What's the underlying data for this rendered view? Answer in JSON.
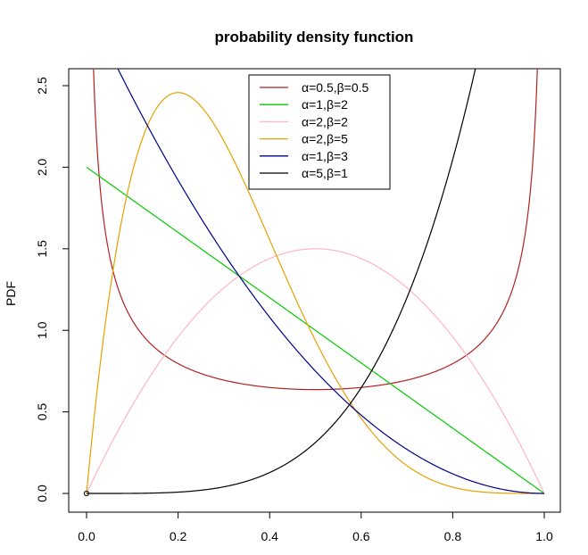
{
  "chart_data": {
    "type": "line",
    "title": "probability density function",
    "xlabel": "",
    "ylabel": "PDF",
    "xlim": [
      0.0,
      1.0
    ],
    "ylim": [
      0.0,
      2.5
    ],
    "x_ticks": [
      "0.0",
      "0.2",
      "0.4",
      "0.6",
      "0.8",
      "1.0"
    ],
    "y_ticks": [
      "0.0",
      "0.5",
      "1.0",
      "1.5",
      "2.0",
      "2.5"
    ],
    "legend_position": "top-center",
    "series": [
      {
        "name": "α=0.5,β=0.5",
        "alpha": 0.5,
        "beta": 0.5,
        "color": "#b22222",
        "x": [
          0.01,
          0.05,
          0.1,
          0.2,
          0.3,
          0.4,
          0.5,
          0.6,
          0.7,
          0.8,
          0.9,
          0.95,
          0.99
        ],
        "y": [
          3.2,
          1.46,
          1.06,
          0.8,
          0.69,
          0.65,
          0.64,
          0.65,
          0.69,
          0.8,
          1.06,
          1.46,
          3.2
        ]
      },
      {
        "name": "α=1,β=2",
        "alpha": 1,
        "beta": 2,
        "color": "#00cc00",
        "x": [
          0.0,
          0.2,
          0.4,
          0.6,
          0.8,
          1.0
        ],
        "y": [
          2.0,
          1.6,
          1.2,
          0.8,
          0.4,
          0.0
        ]
      },
      {
        "name": "α=2,β=2",
        "alpha": 2,
        "beta": 2,
        "color": "#ffb6c1",
        "x": [
          0.0,
          0.1,
          0.2,
          0.3,
          0.4,
          0.5,
          0.6,
          0.7,
          0.8,
          0.9,
          1.0
        ],
        "y": [
          0.0,
          0.54,
          0.96,
          1.26,
          1.44,
          1.5,
          1.44,
          1.26,
          0.96,
          0.54,
          0.0
        ]
      },
      {
        "name": "α=2,β=5",
        "alpha": 2,
        "beta": 5,
        "color": "#e6a100",
        "x": [
          0.0,
          0.1,
          0.2,
          0.3,
          0.4,
          0.5,
          0.6,
          0.7,
          0.8,
          0.9,
          1.0
        ],
        "y": [
          0.0,
          1.97,
          2.46,
          2.16,
          1.56,
          0.94,
          0.46,
          0.17,
          0.04,
          0.0,
          0.0
        ]
      },
      {
        "name": "α=1,β=3",
        "alpha": 1,
        "beta": 3,
        "color": "#00008b",
        "x": [
          0.0,
          0.1,
          0.2,
          0.3,
          0.4,
          0.5,
          0.6,
          0.7,
          0.8,
          0.9,
          1.0
        ],
        "y": [
          3.0,
          2.43,
          1.92,
          1.47,
          1.08,
          0.75,
          0.48,
          0.27,
          0.12,
          0.03,
          0.0
        ]
      },
      {
        "name": "α=5,β=1",
        "alpha": 5,
        "beta": 1,
        "color": "#000000",
        "x": [
          0.0,
          0.2,
          0.4,
          0.5,
          0.6,
          0.7,
          0.8,
          0.85
        ],
        "y": [
          0.0,
          0.01,
          0.13,
          0.31,
          0.65,
          1.2,
          2.05,
          2.61
        ]
      }
    ],
    "marker_points": [
      {
        "x": 0.0,
        "y": 0.0
      }
    ]
  }
}
